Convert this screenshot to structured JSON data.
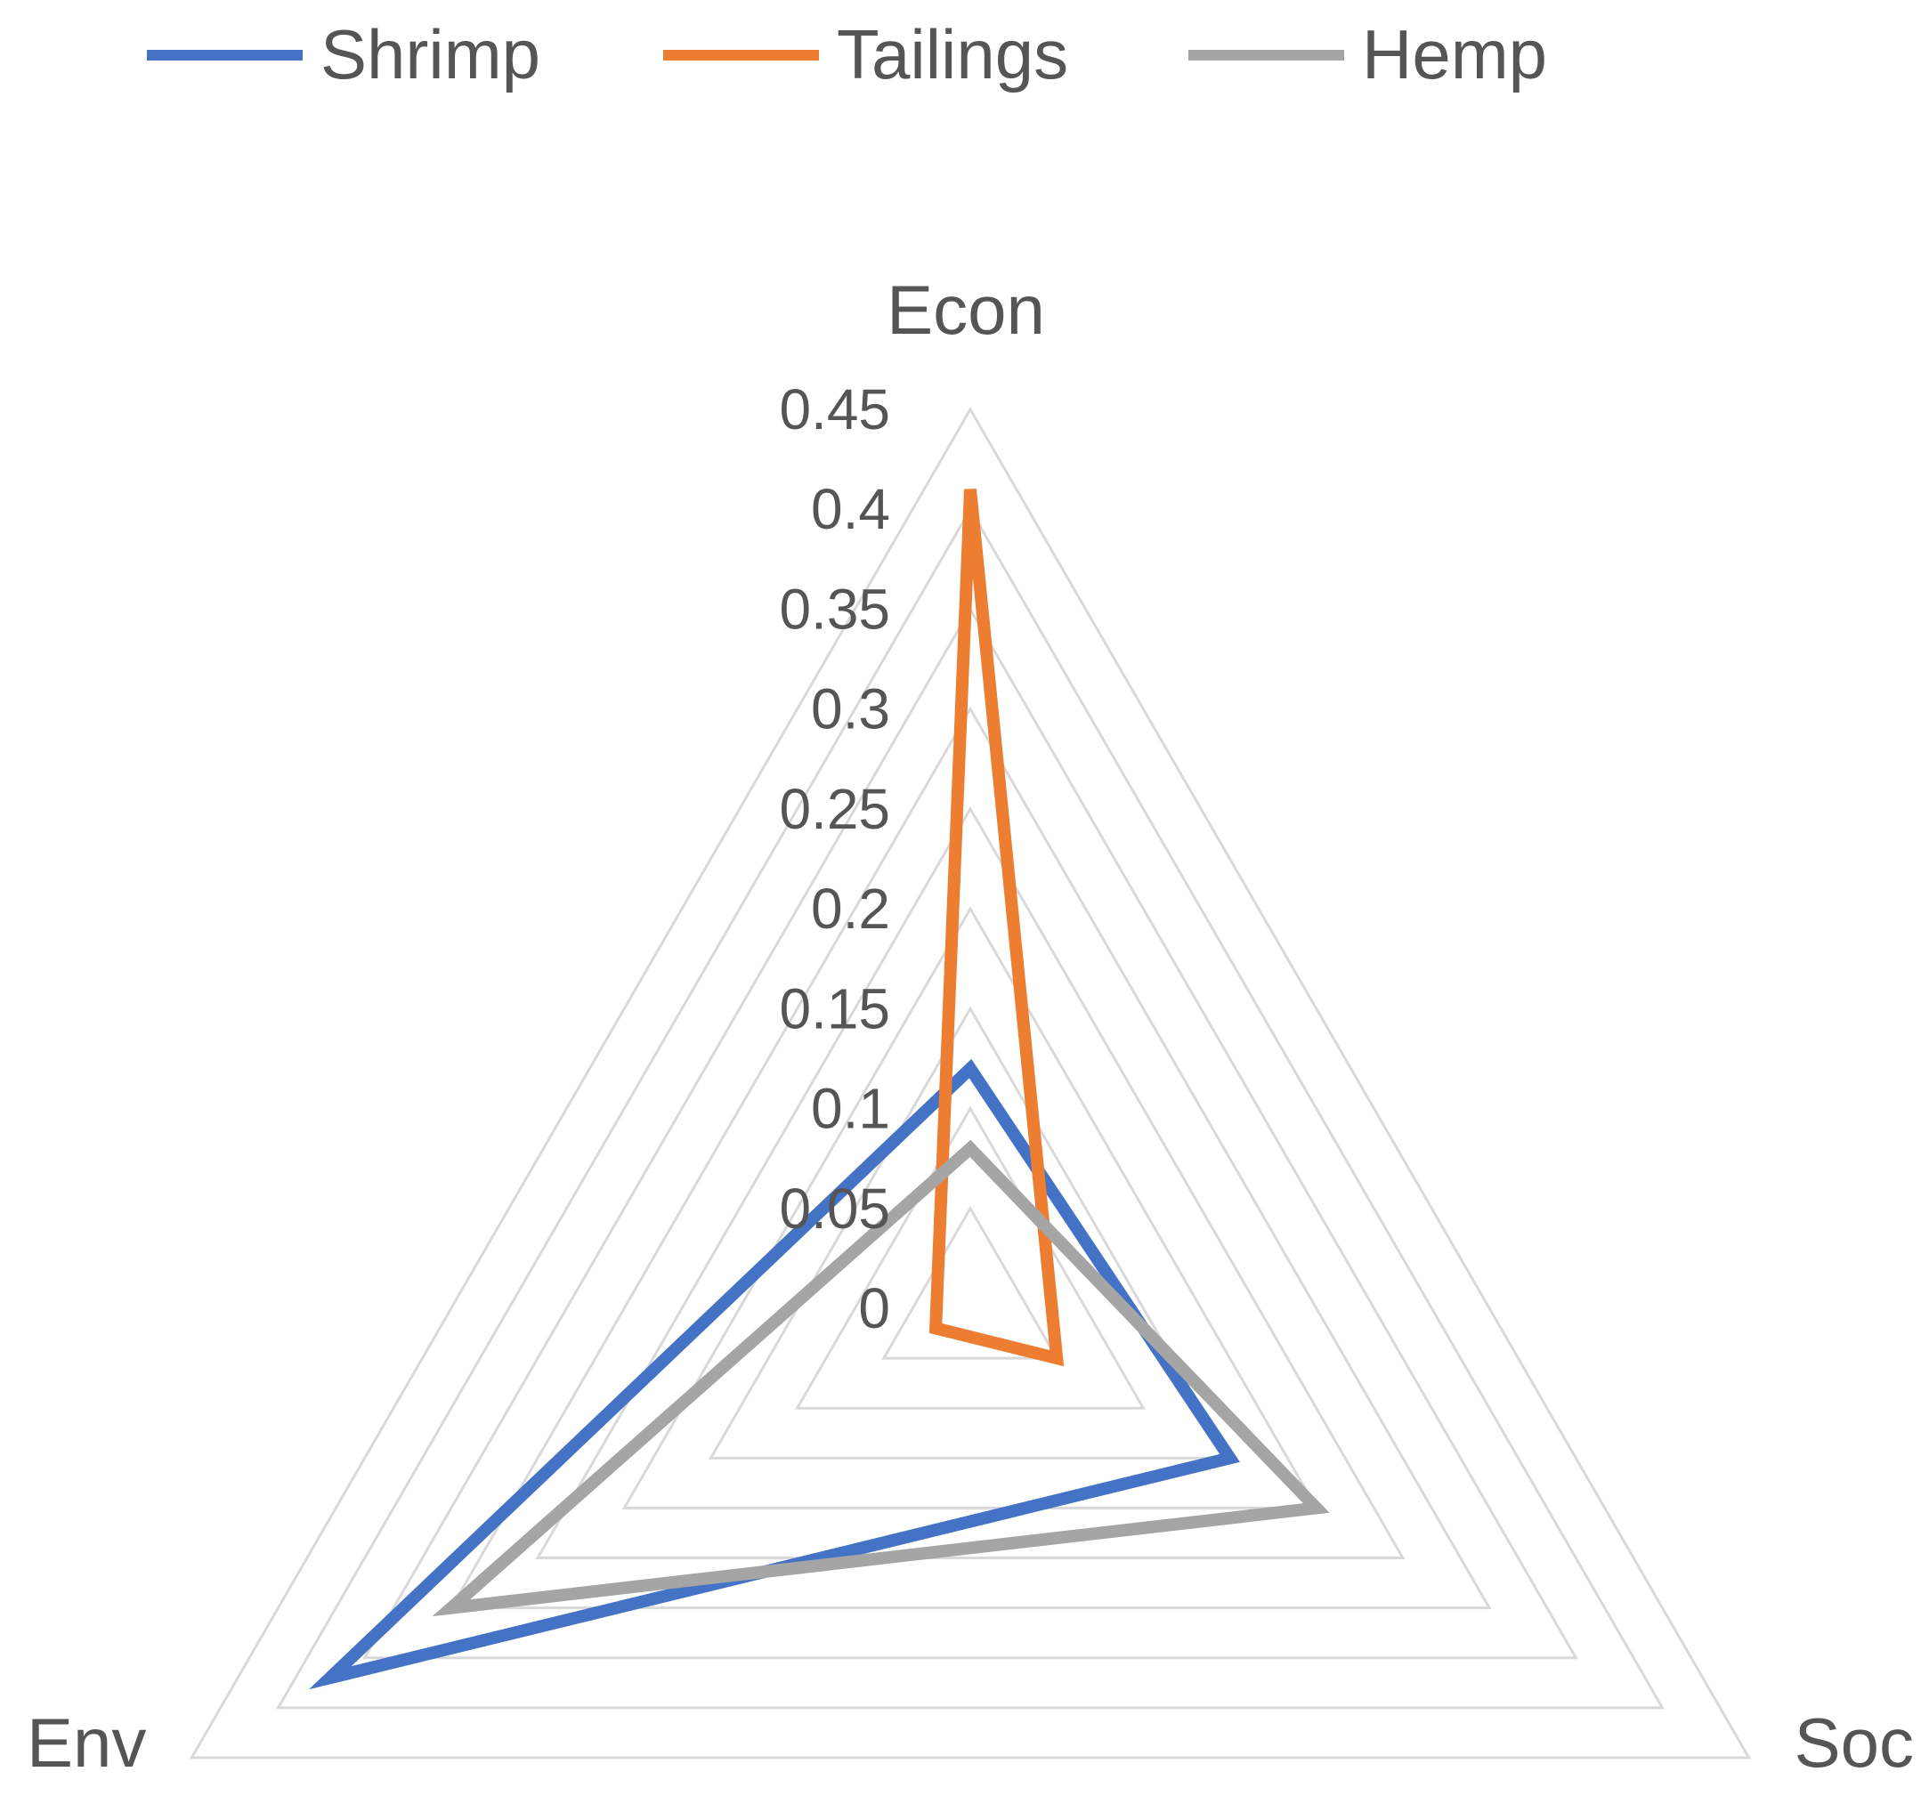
{
  "chart_data": {
    "type": "radar",
    "categories": [
      "Econ",
      "Soc",
      "Env"
    ],
    "series": [
      {
        "name": "Shrimp",
        "color": "#4472c4",
        "values": [
          0.12,
          0.15,
          0.37
        ]
      },
      {
        "name": "Tailings",
        "color": "#ed7d31",
        "values": [
          0.41,
          0.05,
          0.02
        ]
      },
      {
        "name": "Hemp",
        "color": "#a5a5a5",
        "values": [
          0.08,
          0.2,
          0.3
        ]
      }
    ],
    "ticks": [
      "0",
      "0.05",
      "0.1",
      "0.15",
      "0.2",
      "0.25",
      "0.3",
      "0.35",
      "0.4",
      "0.45"
    ],
    "rlim": [
      0,
      0.45
    ],
    "grid": true,
    "legend_position": "top-left",
    "grid_color": "#d9d9d9",
    "text_color": "#555555"
  }
}
